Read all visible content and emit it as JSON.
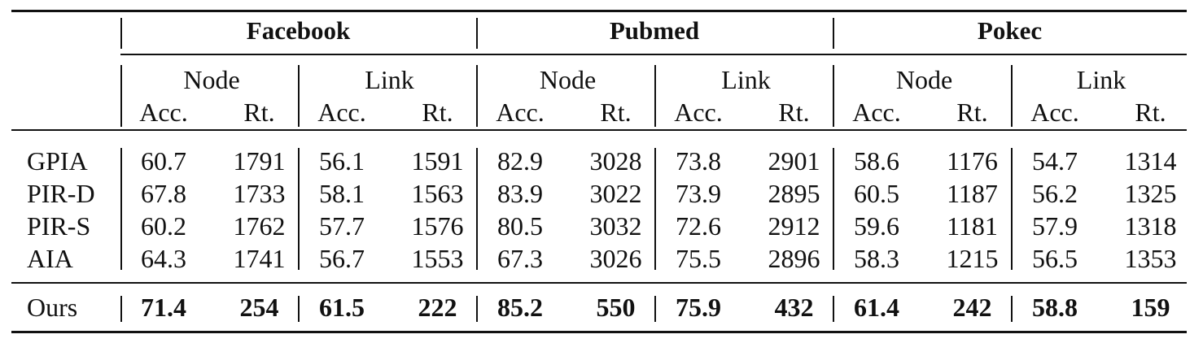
{
  "table": {
    "datasets": [
      "Facebook",
      "Pubmed",
      "Pokec"
    ],
    "tasks": [
      "Node",
      "Link"
    ],
    "metrics": [
      "Acc.",
      "Rt."
    ],
    "rows": [
      {
        "method": "GPIA",
        "values": [
          "60.7",
          "1791",
          "56.1",
          "1591",
          "82.9",
          "3028",
          "73.8",
          "2901",
          "58.6",
          "1176",
          "54.7",
          "1314"
        ]
      },
      {
        "method": "PIR-D",
        "values": [
          "67.8",
          "1733",
          "58.1",
          "1563",
          "83.9",
          "3022",
          "73.9",
          "2895",
          "60.5",
          "1187",
          "56.2",
          "1325"
        ]
      },
      {
        "method": "PIR-S",
        "values": [
          "60.2",
          "1762",
          "57.7",
          "1576",
          "80.5",
          "3032",
          "72.6",
          "2912",
          "59.6",
          "1181",
          "57.9",
          "1318"
        ]
      },
      {
        "method": "AIA",
        "values": [
          "64.3",
          "1741",
          "56.7",
          "1553",
          "67.3",
          "3026",
          "75.5",
          "2896",
          "58.3",
          "1215",
          "56.5",
          "1353"
        ]
      }
    ],
    "ours": {
      "method": "Ours",
      "values": [
        "71.4",
        "254",
        "61.5",
        "222",
        "85.2",
        "550",
        "75.9",
        "432",
        "61.4",
        "242",
        "58.8",
        "159"
      ]
    }
  }
}
